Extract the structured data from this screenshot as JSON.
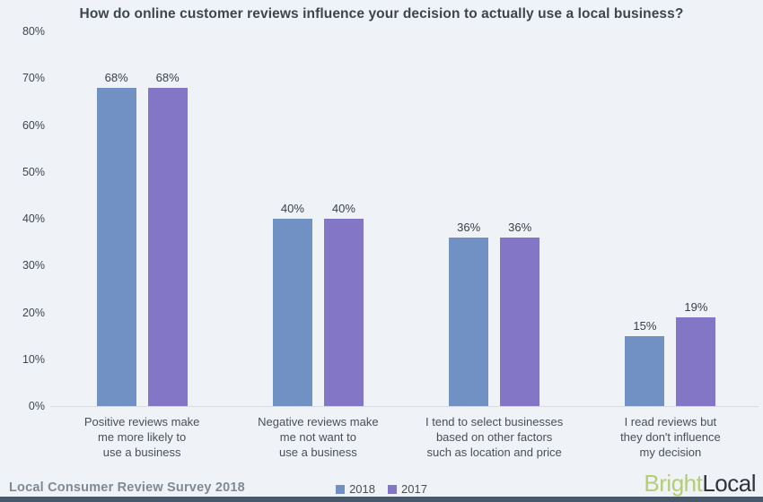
{
  "chart_data": {
    "type": "bar",
    "title": "How do online customer reviews influence your decision to actually use a local business?",
    "categories": [
      "Positive reviews make\nme more likely to\nuse a business",
      "Negative reviews make\nme not want to\nuse a business",
      "I tend to select businesses\nbased on other factors\nsuch as location and price",
      "I read reviews but\nthey don't influence\nmy decision"
    ],
    "series": [
      {
        "name": "2018",
        "color": "#7191c5",
        "values": [
          68,
          40,
          36,
          15
        ]
      },
      {
        "name": "2017",
        "color": "#8476c6",
        "values": [
          68,
          40,
          36,
          19
        ]
      }
    ],
    "ylim": [
      0,
      80
    ],
    "ytick_step": 10,
    "ytick_suffix": "%",
    "value_suffix": "%",
    "grid": false,
    "legend_position": "bottom-center"
  },
  "footer": {
    "source": "Local Consumer Review Survey 2018",
    "logo": {
      "part1": "Bright",
      "part2": "Local",
      "part1_color": "#b5cd74",
      "part2_color": "#30343a"
    }
  }
}
